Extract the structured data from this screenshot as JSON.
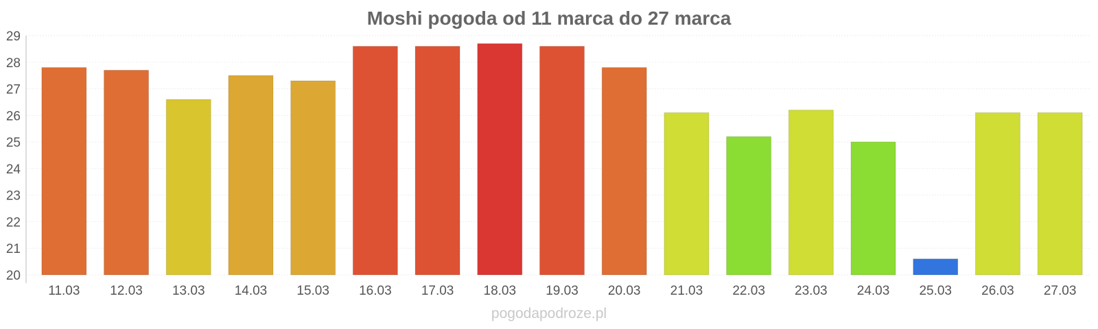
{
  "chart_data": {
    "type": "bar",
    "title": "Moshi pogoda od 11 marca do 27 marca",
    "xlabel": "",
    "ylabel": "",
    "categories": [
      "11.03",
      "12.03",
      "13.03",
      "14.03",
      "15.03",
      "16.03",
      "17.03",
      "18.03",
      "19.03",
      "20.03",
      "21.03",
      "22.03",
      "23.03",
      "24.03",
      "25.03",
      "26.03",
      "27.03"
    ],
    "values": [
      27.8,
      27.7,
      26.6,
      27.5,
      27.3,
      28.6,
      28.6,
      28.7,
      28.6,
      27.8,
      26.1,
      25.2,
      26.2,
      25.0,
      20.6,
      26.1,
      26.1
    ],
    "colors": [
      "#de6e33",
      "#de6e33",
      "#d9c62e",
      "#dca833",
      "#dca833",
      "#dd5233",
      "#dd5233",
      "#da3632",
      "#dd5233",
      "#de6e33",
      "#cfdd35",
      "#8bdc33",
      "#cfdd35",
      "#8bdc33",
      "#3275de",
      "#cfdd35",
      "#cfdd35"
    ],
    "ylim": [
      20,
      29
    ],
    "yticks": [
      "20",
      "21",
      "22",
      "23",
      "24",
      "25",
      "26",
      "27",
      "28",
      "29"
    ],
    "grid": true,
    "legend": "none"
  },
  "watermark": "pogodapodroze.pl"
}
